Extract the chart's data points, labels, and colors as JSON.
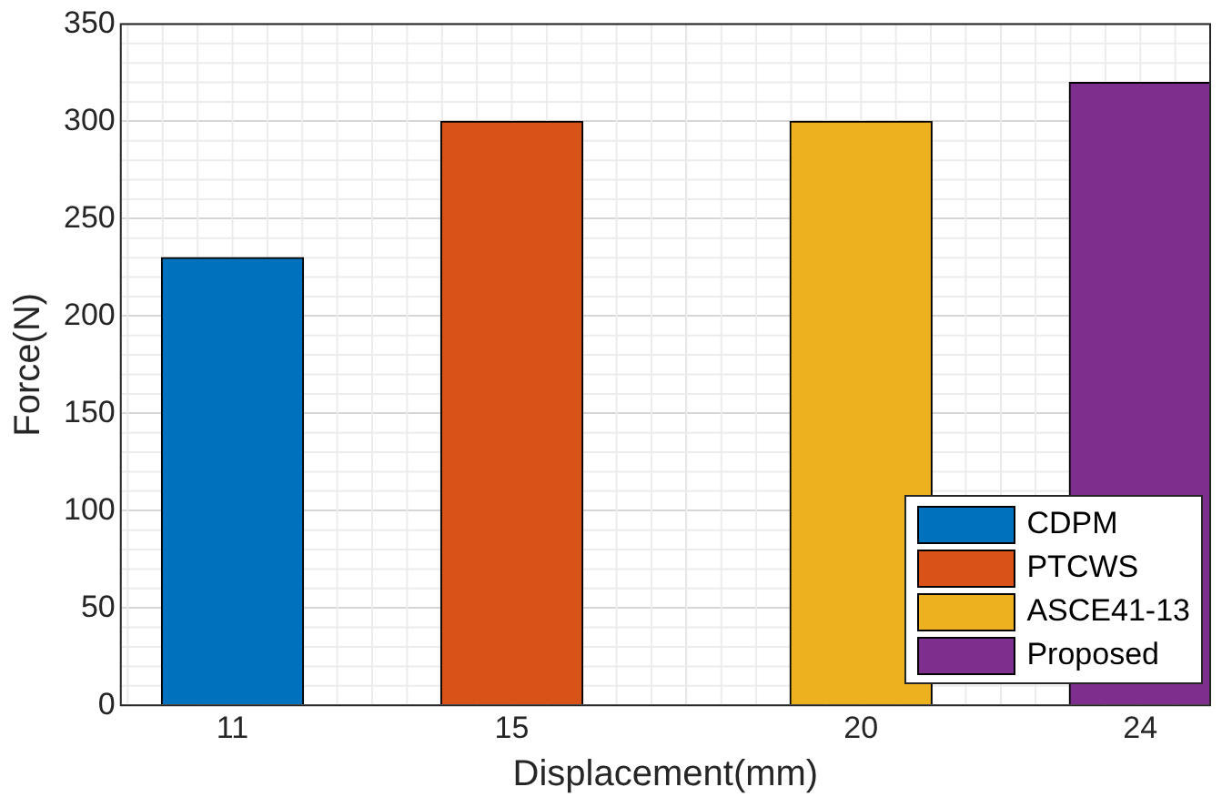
{
  "chart_data": {
    "type": "bar",
    "xlabel": "Displacement(mm)",
    "ylabel": "Force(N)",
    "x": [
      11,
      15,
      20,
      24
    ],
    "series": [
      {
        "name": "CDPM",
        "color": "#0072bd",
        "values": [
          230,
          null,
          null,
          null
        ]
      },
      {
        "name": "PTCWS",
        "color": "#d95319",
        "values": [
          null,
          300,
          null,
          null
        ]
      },
      {
        "name": "ASCE41-13",
        "color": "#edb120",
        "values": [
          null,
          null,
          300,
          null
        ]
      },
      {
        "name": "Proposed",
        "color": "#7e2f8e",
        "values": [
          null,
          null,
          null,
          320
        ]
      }
    ],
    "xlim": [
      9.4,
      25
    ],
    "xticks": [
      11,
      15,
      20,
      24
    ],
    "ylim": [
      0,
      350
    ],
    "yticks": [
      0,
      50,
      100,
      150,
      200,
      250,
      300,
      350
    ],
    "grid": true,
    "legend": "bottom right"
  }
}
